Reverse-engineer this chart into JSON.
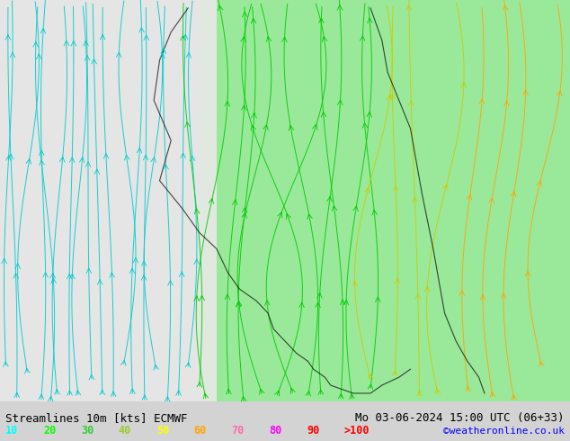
{
  "title_left": "Streamlines 10m [kts] ECMWF",
  "title_right": "Mo 03-06-2024 15:00 UTC (06+33)",
  "credit": "©weatheronline.co.uk",
  "legend_values": [
    "10",
    "20",
    "30",
    "40",
    "50",
    "60",
    "70",
    "80",
    "90",
    ">100"
  ],
  "legend_colors": [
    "#00ffff",
    "#00ff00",
    "#32cd32",
    "#9acd32",
    "#ffff00",
    "#ffa500",
    "#ff69b4",
    "#ff00ff",
    "#ff0000",
    "#ff0000"
  ],
  "bg_color": "#d3d3d3",
  "map_bg": "#f0f0f0",
  "green_fill": "#90ee90",
  "text_color": "#000000",
  "bottom_bar_color": "#c8c8c8",
  "figsize": [
    6.34,
    4.9
  ],
  "dpi": 100
}
